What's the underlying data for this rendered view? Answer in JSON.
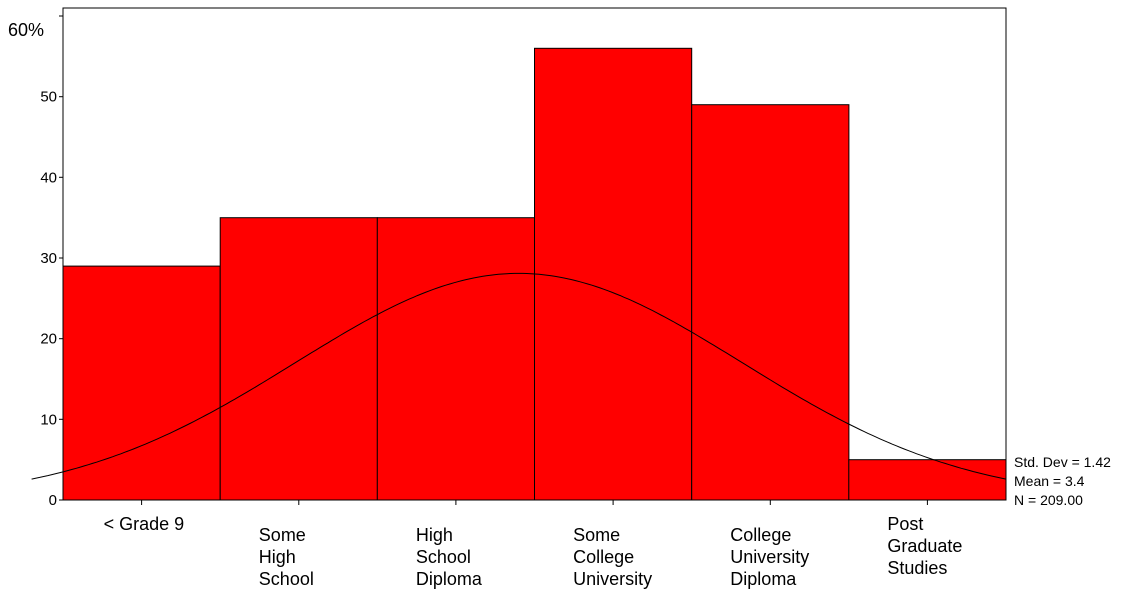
{
  "chart_data": {
    "type": "bar",
    "categories": [
      [
        "< Grade 9"
      ],
      [
        "Some",
        "High",
        "School"
      ],
      [
        "High",
        "School",
        "Diploma"
      ],
      [
        "Some",
        "College",
        "University"
      ],
      [
        "College",
        "University",
        "Diploma"
      ],
      [
        "Post",
        "Graduate",
        "Studies"
      ]
    ],
    "values": [
      29,
      35,
      35,
      56,
      49,
      5
    ],
    "y_ticks": [
      "0",
      "10",
      "20",
      "30",
      "40",
      "50"
    ],
    "y_unit_label": "60%",
    "ylim": [
      0,
      60
    ],
    "grid": false,
    "legend": "none",
    "bar_color": "#ff0000",
    "curve": {
      "type": "normal",
      "mean": 3.4,
      "std_dev": 1.42,
      "n": 209
    },
    "stats": {
      "std_dev": "Std. Dev = 1.42",
      "mean": "Mean = 3.4",
      "n": "N = 209.00"
    }
  }
}
